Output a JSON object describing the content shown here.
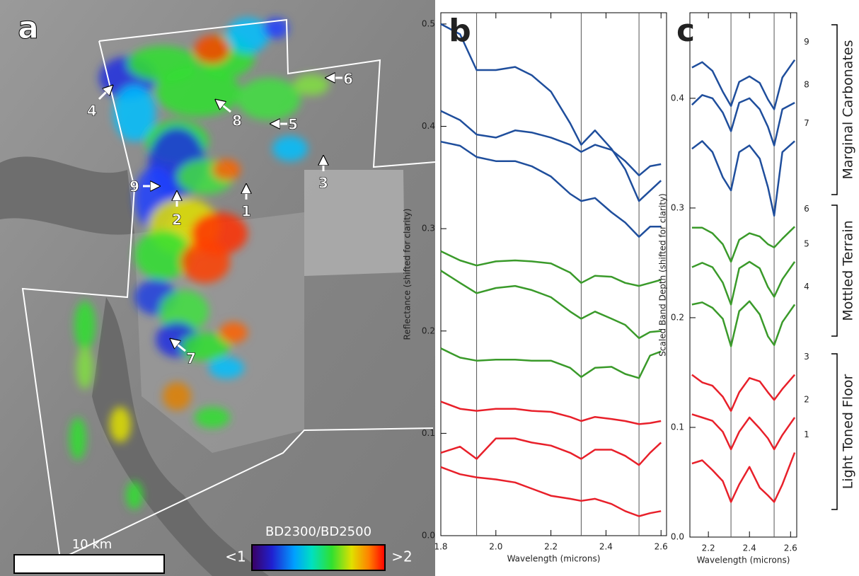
{
  "map": {
    "panel_label": "a",
    "site_labels": [
      "1",
      "2",
      "3",
      "4",
      "5",
      "6",
      "7",
      "8",
      "9"
    ],
    "scale_label": "10 km",
    "colorbar_title": "BD2300/BD2500",
    "colorbar_min": "<1",
    "colorbar_max": ">2"
  },
  "chart_data": [
    {
      "type": "line",
      "panel_label": "b",
      "y_label": "Reflectance (shifted for clarity)",
      "x_label": "Wavelength (microns)",
      "xlim": [
        1.8,
        2.62
      ],
      "xticks": [
        1.8,
        {
          "value": 2.0,
          "label": "2.0"
        },
        2.2,
        2.4,
        2.6
      ],
      "ylim": [
        0,
        0.511
      ],
      "yticks": [
        {
          "value": 0,
          "label": "0.0"
        },
        0.1,
        0.2,
        0.3,
        0.4,
        0.5
      ],
      "vlines": [
        1.93,
        2.31,
        2.52
      ],
      "x": [
        1.8,
        1.87,
        1.93,
        2.0,
        2.07,
        2.13,
        2.2,
        2.27,
        2.31,
        2.36,
        2.42,
        2.47,
        2.52,
        2.56,
        2.6
      ],
      "series": [
        {
          "color": "#1f4e9c",
          "values": [
            0.5,
            0.49,
            0.455,
            0.455,
            0.458,
            0.45,
            0.434,
            0.403,
            0.382,
            0.396,
            0.378,
            0.358,
            0.327,
            0.337,
            0.347
          ]
        },
        {
          "color": "#1f4e9c",
          "values": [
            0.415,
            0.406,
            0.392,
            0.389,
            0.396,
            0.394,
            0.389,
            0.382,
            0.375,
            0.382,
            0.377,
            0.366,
            0.352,
            0.361,
            0.363
          ]
        },
        {
          "color": "#1f4e9c",
          "values": [
            0.385,
            0.381,
            0.37,
            0.366,
            0.366,
            0.361,
            0.351,
            0.334,
            0.327,
            0.33,
            0.316,
            0.306,
            0.292,
            0.302,
            0.302
          ]
        },
        {
          "color": "#3a9a2a",
          "values": [
            0.278,
            0.269,
            0.264,
            0.268,
            0.269,
            0.268,
            0.266,
            0.257,
            0.247,
            0.254,
            0.253,
            0.247,
            0.244,
            0.247,
            0.25
          ]
        },
        {
          "color": "#3a9a2a",
          "values": [
            0.259,
            0.247,
            0.237,
            0.242,
            0.244,
            0.24,
            0.233,
            0.219,
            0.212,
            0.219,
            0.212,
            0.206,
            0.193,
            0.199,
            0.2
          ]
        },
        {
          "color": "#3a9a2a",
          "values": [
            0.183,
            0.174,
            0.171,
            0.172,
            0.172,
            0.171,
            0.171,
            0.164,
            0.155,
            0.164,
            0.165,
            0.158,
            0.154,
            0.176,
            0.18
          ]
        },
        {
          "color": "#e8202a",
          "values": [
            0.131,
            0.124,
            0.122,
            0.124,
            0.124,
            0.122,
            0.121,
            0.116,
            0.112,
            0.116,
            0.114,
            0.112,
            0.109,
            0.11,
            0.112
          ]
        },
        {
          "color": "#e8202a",
          "values": [
            0.081,
            0.087,
            0.075,
            0.095,
            0.095,
            0.091,
            0.088,
            0.081,
            0.075,
            0.084,
            0.084,
            0.078,
            0.069,
            0.081,
            0.091
          ]
        },
        {
          "color": "#e8202a",
          "values": [
            0.067,
            0.06,
            0.057,
            0.055,
            0.052,
            0.046,
            0.039,
            0.036,
            0.034,
            0.036,
            0.031,
            0.024,
            0.019,
            0.022,
            0.024
          ]
        }
      ]
    },
    {
      "type": "line",
      "panel_label": "c",
      "y_label": "Scaled Band Depth (shifted for clarity)",
      "x_label": "Wavelength (microns)",
      "xlim": [
        2.11,
        2.63
      ],
      "xticks": [
        2.2,
        2.4,
        2.6
      ],
      "ylim": [
        0,
        0.478
      ],
      "yticks": [
        {
          "value": 0,
          "label": "0.0"
        },
        0.1,
        0.2,
        0.3,
        0.4
      ],
      "vlines": [
        2.31,
        2.52
      ],
      "groups": [
        "Marginal Carbonates",
        "Mottled Terrain",
        "Light Toned Floor"
      ],
      "x": [
        2.12,
        2.17,
        2.22,
        2.27,
        2.31,
        2.35,
        2.4,
        2.45,
        2.49,
        2.52,
        2.56,
        2.62
      ],
      "series": [
        {
          "name": "9",
          "color": "#1f4e9c",
          "values": [
            0.428,
            0.433,
            0.425,
            0.406,
            0.393,
            0.415,
            0.42,
            0.414,
            0.399,
            0.39,
            0.419,
            0.435
          ]
        },
        {
          "name": "8",
          "color": "#1f4e9c",
          "values": [
            0.394,
            0.403,
            0.4,
            0.387,
            0.37,
            0.396,
            0.4,
            0.39,
            0.374,
            0.357,
            0.39,
            0.396
          ]
        },
        {
          "name": "7",
          "color": "#1f4e9c",
          "values": [
            0.354,
            0.361,
            0.351,
            0.328,
            0.316,
            0.351,
            0.357,
            0.345,
            0.319,
            0.293,
            0.351,
            0.361
          ]
        },
        {
          "name": "6",
          "color": "#3a9a2a",
          "values": [
            0.282,
            0.282,
            0.277,
            0.267,
            0.251,
            0.271,
            0.277,
            0.274,
            0.267,
            0.264,
            0.272,
            0.283
          ]
        },
        {
          "name": "5",
          "color": "#3a9a2a",
          "values": [
            0.246,
            0.25,
            0.246,
            0.232,
            0.212,
            0.245,
            0.251,
            0.245,
            0.228,
            0.219,
            0.235,
            0.251
          ]
        },
        {
          "name": "4",
          "color": "#3a9a2a",
          "values": [
            0.212,
            0.214,
            0.209,
            0.199,
            0.174,
            0.206,
            0.215,
            0.203,
            0.183,
            0.175,
            0.196,
            0.212
          ]
        },
        {
          "name": "3",
          "color": "#e8202a",
          "values": [
            0.148,
            0.141,
            0.138,
            0.128,
            0.115,
            0.132,
            0.145,
            0.142,
            0.132,
            0.125,
            0.135,
            0.148
          ]
        },
        {
          "name": "2",
          "color": "#e8202a",
          "values": [
            0.112,
            0.109,
            0.106,
            0.096,
            0.08,
            0.096,
            0.109,
            0.099,
            0.09,
            0.08,
            0.093,
            0.109
          ]
        },
        {
          "name": "1",
          "color": "#e8202a",
          "values": [
            0.067,
            0.07,
            0.061,
            0.051,
            0.032,
            0.048,
            0.064,
            0.045,
            0.038,
            0.032,
            0.048,
            0.077
          ]
        }
      ]
    }
  ]
}
